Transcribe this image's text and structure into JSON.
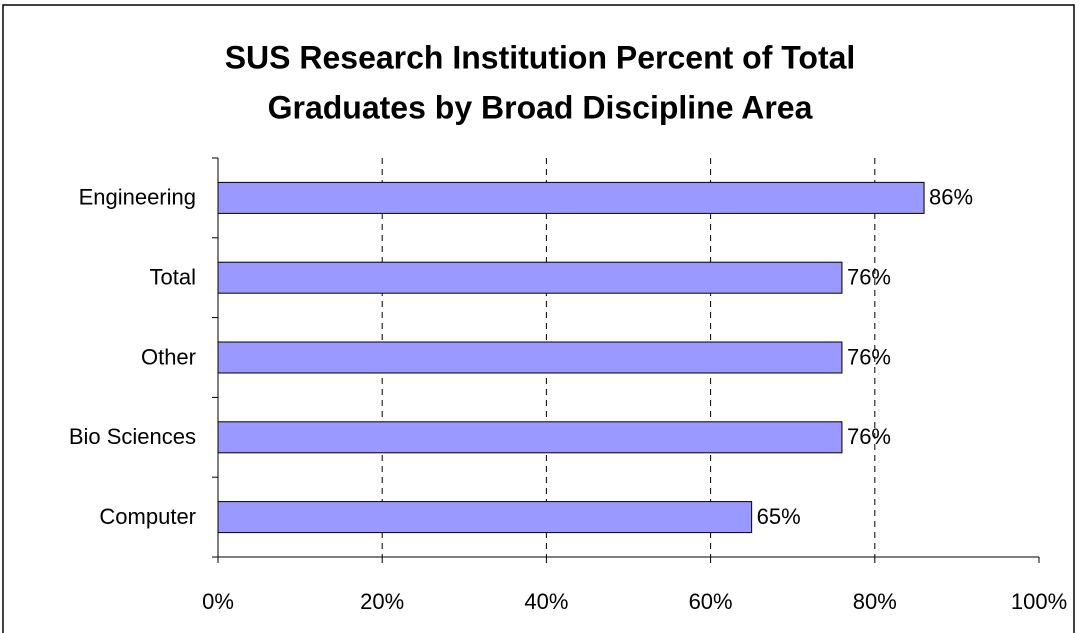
{
  "chart_data": {
    "type": "bar",
    "orientation": "horizontal",
    "title": [
      "SUS Research Institution Percent of Total",
      "Graduates by Broad Discipline Area"
    ],
    "categories": [
      "Engineering",
      "Total",
      "Other",
      "Bio Sciences",
      "Computer"
    ],
    "values": [
      86,
      76,
      76,
      76,
      65
    ],
    "value_labels": [
      "86%",
      "76%",
      "76%",
      "76%",
      "65%"
    ],
    "color": "#9999ff",
    "xlim": [
      0,
      100
    ],
    "xticks": [
      {
        "value": 0,
        "label": "0%"
      },
      {
        "value": 20,
        "label": "20%"
      },
      {
        "value": 40,
        "label": "40%"
      },
      {
        "value": 60,
        "label": "60%"
      },
      {
        "value": 80,
        "label": "80%"
      },
      {
        "value": 100,
        "label": "100%"
      }
    ],
    "grid": true
  }
}
